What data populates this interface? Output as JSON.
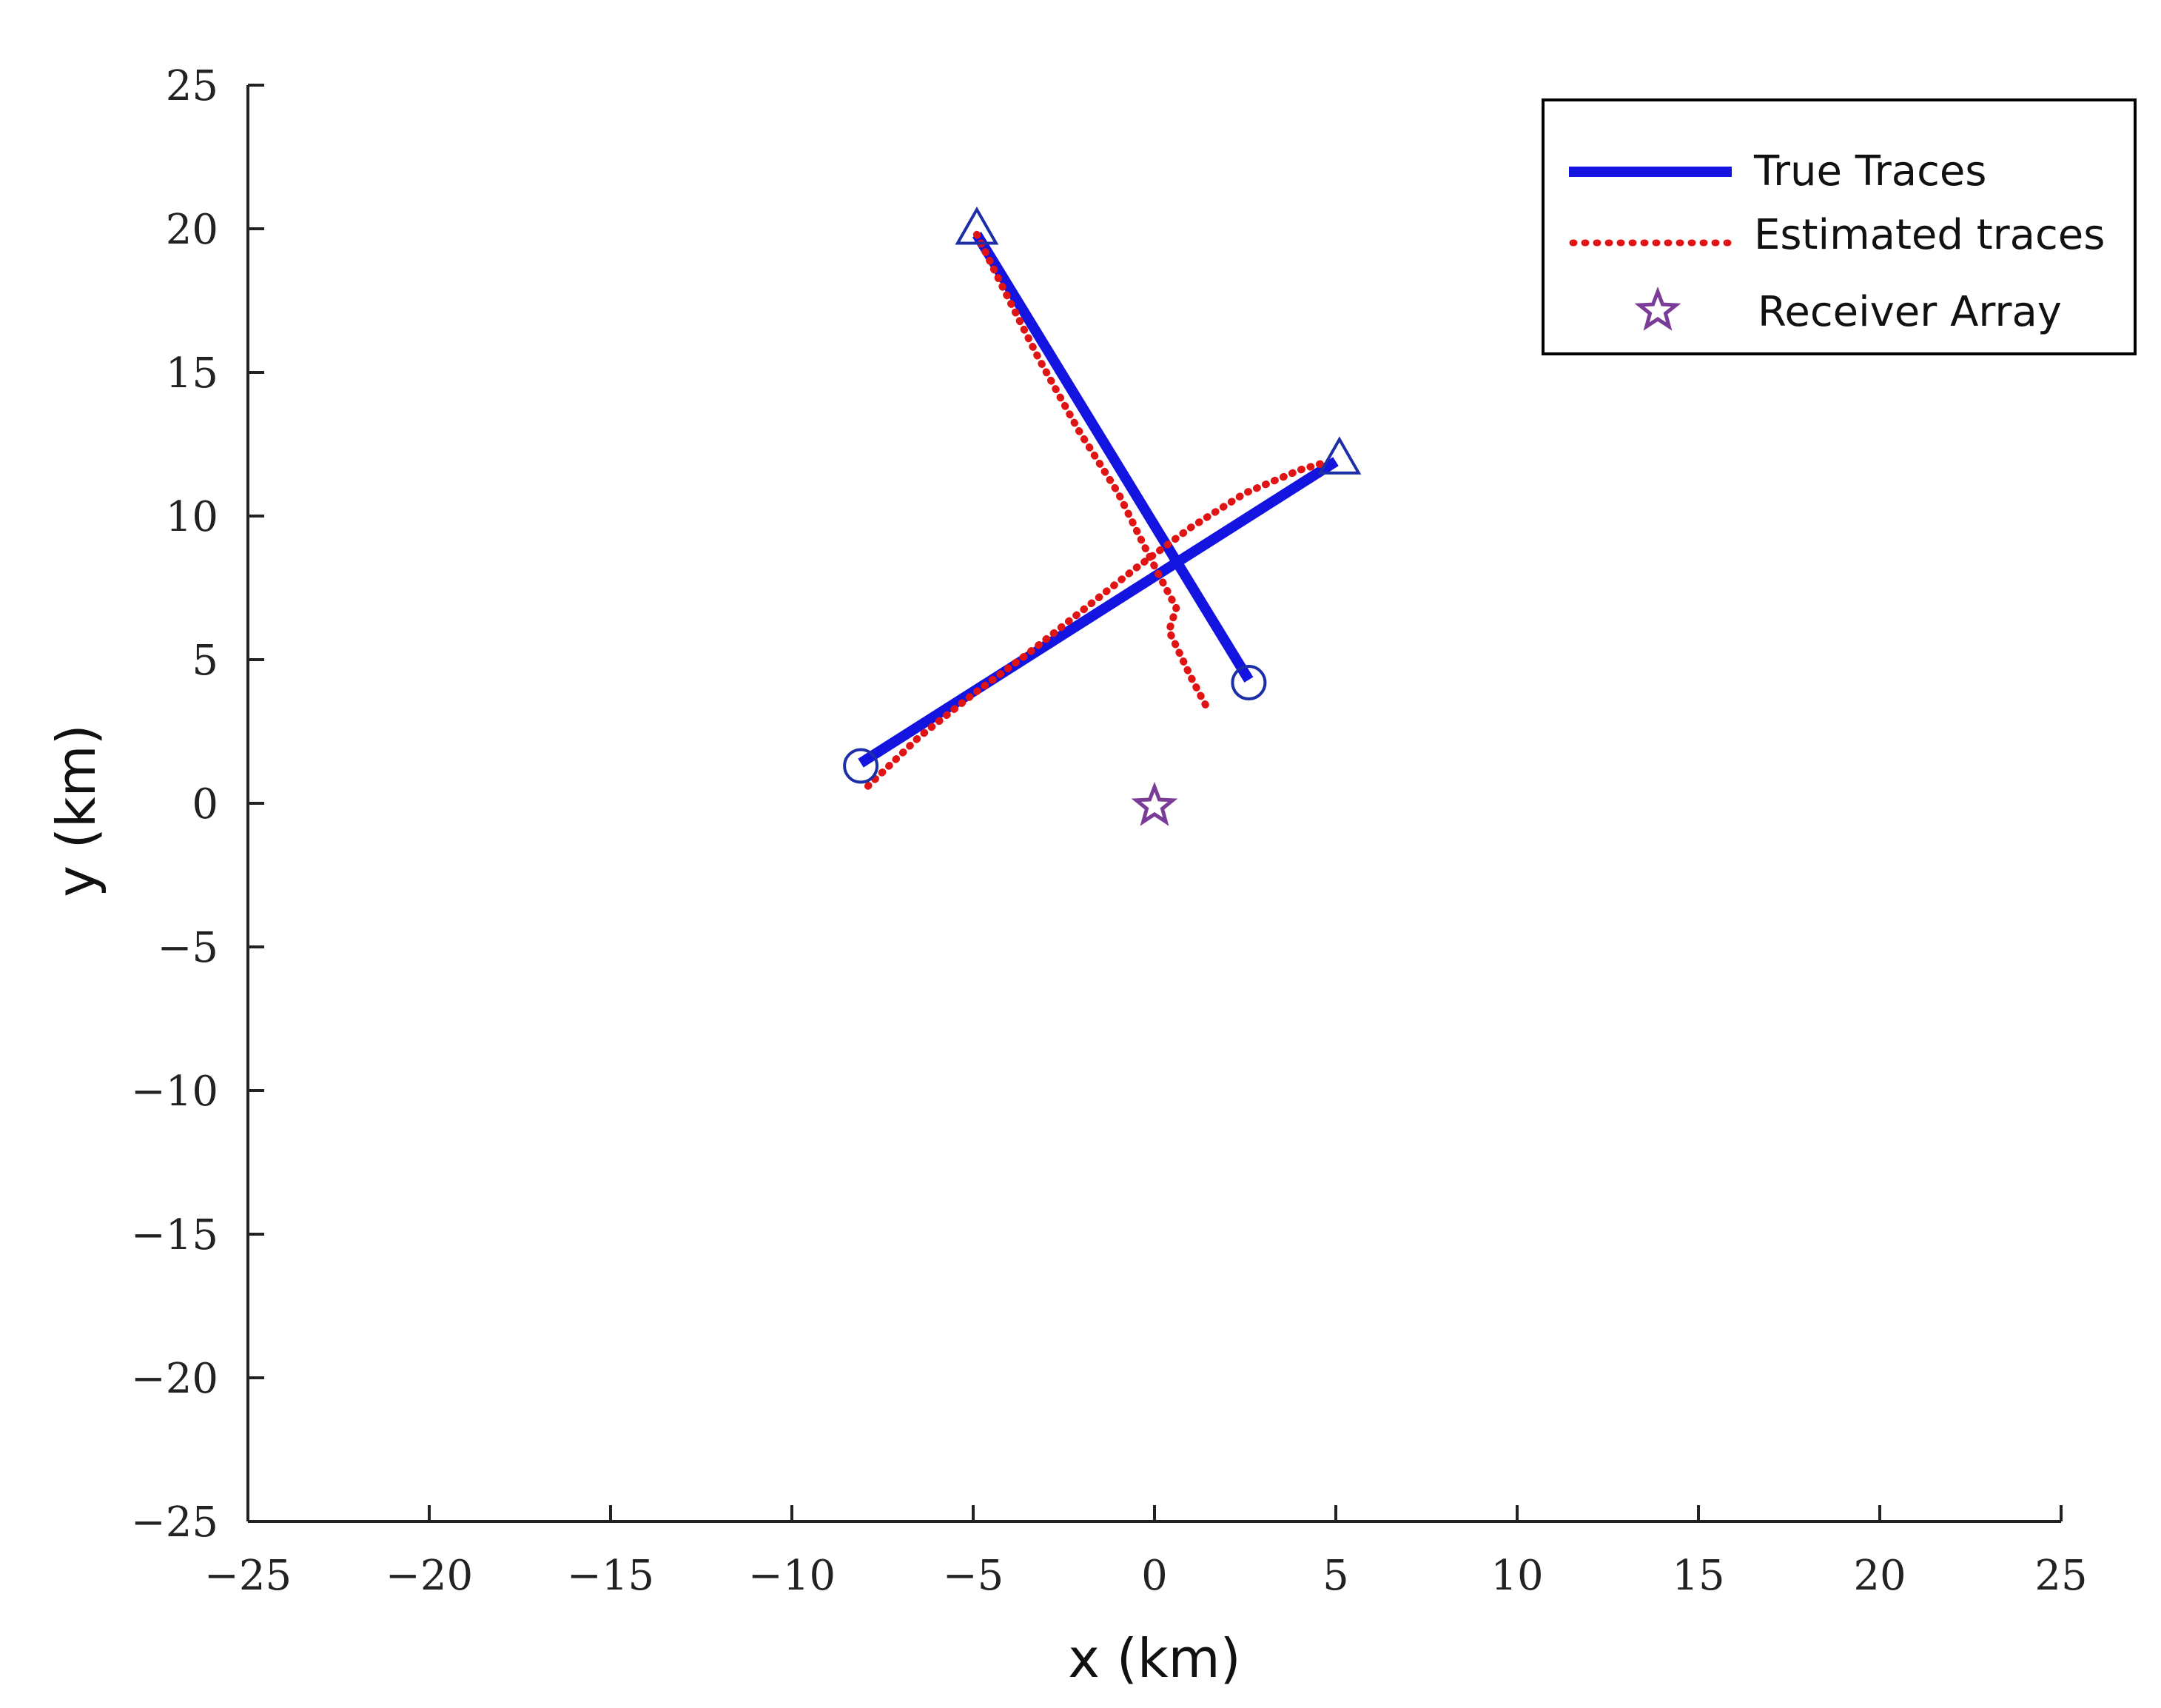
{
  "chart_data": {
    "type": "line",
    "xlabel": "x (km)",
    "ylabel": "y (km)",
    "xlim": [
      -25,
      25
    ],
    "ylim": [
      -25,
      25
    ],
    "x_ticks": [
      -25,
      -20,
      -15,
      -10,
      -5,
      0,
      5,
      10,
      15,
      20,
      25
    ],
    "y_ticks": [
      -25,
      -20,
      -15,
      -10,
      -5,
      0,
      5,
      10,
      15,
      20,
      25
    ],
    "x_tick_labels": [
      "−25",
      "−20",
      "−15",
      "−10",
      "−5",
      "0",
      "5",
      "10",
      "15",
      "20",
      "25"
    ],
    "y_tick_labels": [
      "−25",
      "−20",
      "−15",
      "−10",
      "−5",
      "0",
      "5",
      "10",
      "15",
      "20",
      "25"
    ],
    "grid": false,
    "legend_position": "top-right",
    "colors": {
      "true": "#1414e0",
      "estimated": "#e01414",
      "receiver": "#7a3c96",
      "marker": "#1c2fa6"
    },
    "series": [
      {
        "name": "True Traces",
        "style": "solid",
        "traces": [
          {
            "x": [
              -4.9,
              2.6
            ],
            "y": [
              19.8,
              4.3
            ]
          },
          {
            "x": [
              -8.1,
              5.0
            ],
            "y": [
              1.4,
              11.9
            ]
          }
        ]
      },
      {
        "name": "Estimated traces",
        "style": "dotted",
        "traces": [
          {
            "x": [
              -4.9,
              -4.2,
              -3.2,
              -2.1,
              -1.0,
              -0.3,
              0.1,
              0.6,
              0.4,
              0.7,
              1.0,
              1.5
            ],
            "y": [
              19.8,
              18.0,
              15.5,
              13.0,
              10.8,
              9.0,
              8.0,
              6.8,
              6.0,
              5.2,
              4.4,
              3.2
            ]
          },
          {
            "x": [
              -7.9,
              -6.5,
              -5.0,
              -3.5,
              -2.0,
              -0.5,
              1.0,
              2.5,
              4.0,
              4.8
            ],
            "y": [
              0.6,
              2.3,
              3.8,
              5.2,
              6.7,
              8.2,
              9.6,
              10.8,
              11.6,
              11.9
            ]
          }
        ]
      },
      {
        "name": "Receiver Array",
        "marker": "star",
        "x": [
          0.0
        ],
        "y": [
          -0.1
        ]
      }
    ],
    "start_markers": [
      {
        "x": -4.9,
        "y": 20.0
      },
      {
        "x": 5.1,
        "y": 12.0
      }
    ],
    "end_markers": [
      {
        "x": 2.6,
        "y": 4.2
      },
      {
        "x": -8.1,
        "y": 1.3
      }
    ]
  }
}
